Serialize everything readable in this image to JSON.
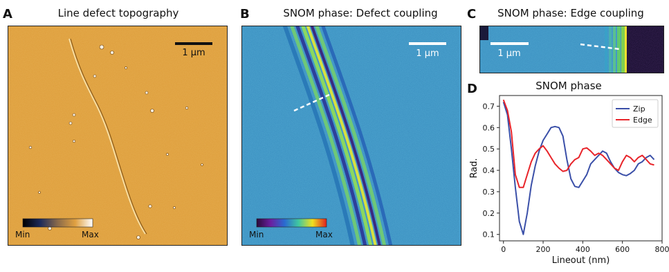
{
  "panels": [
    {
      "letter": "A",
      "title": "Line defect topography",
      "scalebar": "1 μm",
      "colorbar": {
        "min": "Min",
        "max": "Max"
      }
    },
    {
      "letter": "B",
      "title": "SNOM phase: Defect coupling",
      "scalebar": "1 μm",
      "colorbar": {
        "min": "Min",
        "max": "Max"
      }
    },
    {
      "letter": "C",
      "title": "SNOM phase: Edge coupling",
      "scalebar": "1 μm"
    },
    {
      "letter": "D",
      "title": "SNOM phase"
    }
  ],
  "colors": {
    "topo_base": "#e0a140",
    "phase_base": "#3b8fc0",
    "zip": "#3a4fa8",
    "edge": "#e8242a"
  },
  "chart_data": {
    "type": "line",
    "title": "SNOM phase",
    "xlabel": "Lineout (nm)",
    "ylabel": "Rad.",
    "xlim": [
      -20,
      800
    ],
    "ylim": [
      0.07,
      0.75
    ],
    "xticks": [
      0,
      200,
      400,
      600,
      800
    ],
    "yticks": [
      0.1,
      0.2,
      0.3,
      0.4,
      0.5,
      0.6,
      0.7
    ],
    "legend_position": "top-right",
    "grid": false,
    "series": [
      {
        "name": "Zip",
        "color": "#3a4fa8",
        "x": [
          0,
          20,
          40,
          60,
          80,
          100,
          120,
          140,
          160,
          180,
          200,
          220,
          240,
          260,
          280,
          300,
          320,
          340,
          360,
          380,
          400,
          420,
          440,
          460,
          480,
          500,
          520,
          540,
          560,
          580,
          600,
          620,
          640,
          660,
          680,
          700,
          720,
          740,
          760
        ],
        "y": [
          0.72,
          0.66,
          0.5,
          0.32,
          0.16,
          0.1,
          0.2,
          0.33,
          0.42,
          0.49,
          0.54,
          0.57,
          0.6,
          0.605,
          0.6,
          0.56,
          0.45,
          0.36,
          0.325,
          0.32,
          0.35,
          0.38,
          0.43,
          0.45,
          0.47,
          0.49,
          0.48,
          0.44,
          0.41,
          0.39,
          0.38,
          0.375,
          0.385,
          0.4,
          0.43,
          0.44,
          0.46,
          0.47,
          0.45
        ]
      },
      {
        "name": "Edge",
        "color": "#e8242a",
        "x": [
          0,
          20,
          40,
          60,
          80,
          100,
          120,
          140,
          160,
          180,
          200,
          220,
          240,
          260,
          280,
          300,
          320,
          340,
          360,
          380,
          400,
          420,
          440,
          460,
          480,
          500,
          520,
          540,
          560,
          580,
          600,
          620,
          640,
          660,
          680,
          700,
          720,
          740,
          760
        ],
        "y": [
          0.73,
          0.68,
          0.58,
          0.38,
          0.32,
          0.32,
          0.38,
          0.44,
          0.48,
          0.5,
          0.515,
          0.49,
          0.46,
          0.43,
          0.41,
          0.395,
          0.4,
          0.43,
          0.45,
          0.46,
          0.5,
          0.505,
          0.49,
          0.47,
          0.48,
          0.47,
          0.45,
          0.43,
          0.41,
          0.4,
          0.44,
          0.47,
          0.46,
          0.44,
          0.46,
          0.47,
          0.45,
          0.43,
          0.425
        ]
      }
    ]
  }
}
